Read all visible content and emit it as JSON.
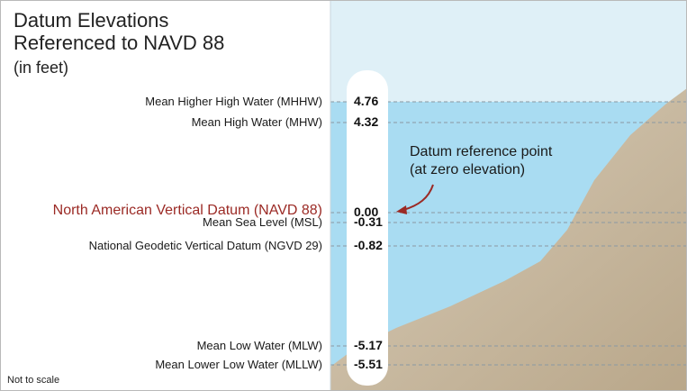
{
  "title": {
    "line1": "Datum Elevations",
    "line2": "Referenced to NAVD 88",
    "line3": "(in feet)"
  },
  "datums": [
    {
      "name": "Mean Higher High Water (MHHW)",
      "value": "4.76",
      "highlight": false
    },
    {
      "name": "Mean High Water (MHW)",
      "value": "4.32",
      "highlight": false
    },
    {
      "name": "North American Vertical Datum (NAVD 88)",
      "value": "0.00",
      "highlight": true
    },
    {
      "name": "Mean Sea Level (MSL)",
      "value": "-0.31",
      "highlight": false
    },
    {
      "name": "National Geodetic Vertical Datum (NGVD 29)",
      "value": "-0.82",
      "highlight": false
    },
    {
      "name": "Mean Low Water (MLW)",
      "value": "-5.17",
      "highlight": false
    },
    {
      "name": "Mean Lower Low Water (MLLW)",
      "value": "-5.51",
      "highlight": false
    }
  ],
  "callout": {
    "line1": "Datum reference point",
    "line2": "(at zero elevation)"
  },
  "footnote": "Not to scale",
  "colors": {
    "sky": "#dff0f7",
    "water": "#a9dcf2",
    "ground": "#c8b89f",
    "highlight": "#9b2a25",
    "gauge": "#ffffff"
  }
}
